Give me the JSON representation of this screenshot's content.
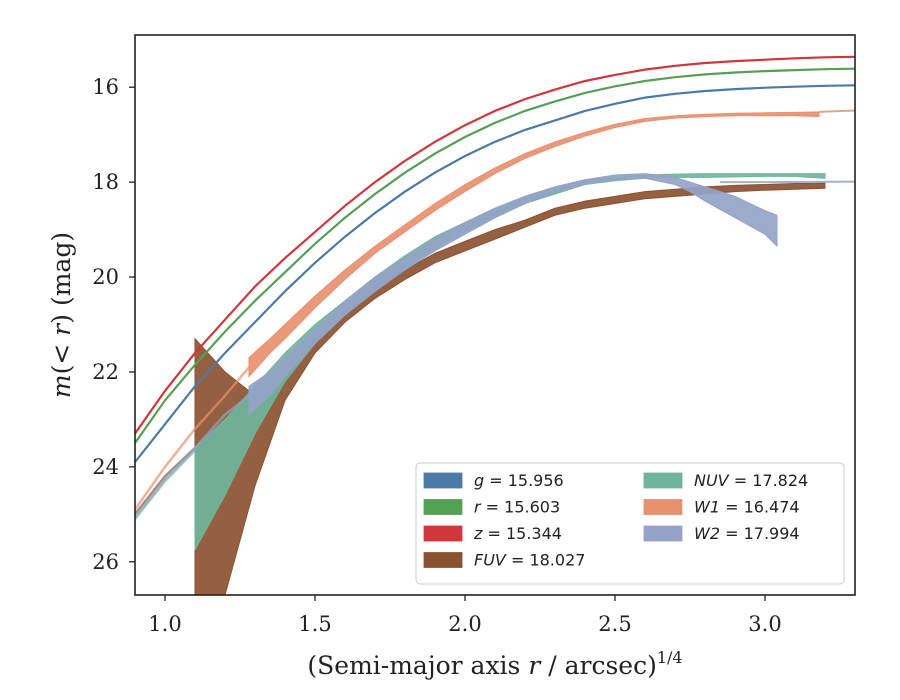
{
  "chart_data": {
    "type": "line",
    "xlabel_main": "(Semi-major axis ",
    "xlabel_var": "r",
    "xlabel_unit": " / arcsec)",
    "xlabel_exp": "1/4",
    "ylabel_m": "m",
    "ylabel_paren_open": "(< ",
    "ylabel_r": "r",
    "ylabel_paren_close": ") (mag)",
    "xlim": [
      0.9,
      3.3
    ],
    "ylim": [
      26.7,
      14.9
    ],
    "y_inverted": true,
    "xticks": [
      1.0,
      1.5,
      2.0,
      2.5,
      3.0
    ],
    "xtick_labels": [
      "1.0",
      "1.5",
      "2.0",
      "2.5",
      "3.0"
    ],
    "yticks": [
      16,
      18,
      20,
      22,
      24,
      26
    ],
    "ytick_labels": [
      "16",
      "18",
      "20",
      "22",
      "24",
      "26"
    ],
    "legend_placement": "lower-right",
    "series": [
      {
        "name": "g",
        "label_var": "g",
        "label_value": "= 15.956",
        "color": "#4c7aa8",
        "kind": "line",
        "x": [
          0.9,
          1.0,
          1.1,
          1.2,
          1.3,
          1.4,
          1.5,
          1.6,
          1.7,
          1.8,
          1.9,
          2.0,
          2.1,
          2.2,
          2.3,
          2.4,
          2.5,
          2.6,
          2.7,
          2.8,
          2.9,
          3.0,
          3.1,
          3.2,
          3.3
        ],
        "y": [
          23.9,
          23.1,
          22.3,
          21.6,
          20.95,
          20.3,
          19.7,
          19.15,
          18.65,
          18.2,
          17.8,
          17.45,
          17.15,
          16.9,
          16.7,
          16.5,
          16.35,
          16.22,
          16.14,
          16.08,
          16.04,
          16.01,
          15.99,
          15.97,
          15.96
        ]
      },
      {
        "name": "r",
        "label_var": "r",
        "label_value": "= 15.603",
        "color": "#55a054",
        "kind": "line",
        "x": [
          0.9,
          1.0,
          1.1,
          1.2,
          1.3,
          1.4,
          1.5,
          1.6,
          1.7,
          1.8,
          1.9,
          2.0,
          2.1,
          2.2,
          2.3,
          2.4,
          2.5,
          2.6,
          2.7,
          2.8,
          2.9,
          3.0,
          3.1,
          3.2,
          3.3
        ],
        "y": [
          23.5,
          22.6,
          21.85,
          21.15,
          20.5,
          19.9,
          19.3,
          18.75,
          18.25,
          17.8,
          17.4,
          17.05,
          16.75,
          16.5,
          16.3,
          16.12,
          15.98,
          15.87,
          15.79,
          15.73,
          15.69,
          15.66,
          15.64,
          15.62,
          15.61
        ]
      },
      {
        "name": "z",
        "label_var": "z",
        "label_value": "= 15.344",
        "color": "#d0363c",
        "kind": "line",
        "x": [
          0.9,
          1.0,
          1.1,
          1.2,
          1.3,
          1.4,
          1.5,
          1.6,
          1.7,
          1.8,
          1.9,
          2.0,
          2.1,
          2.2,
          2.3,
          2.4,
          2.5,
          2.6,
          2.7,
          2.8,
          2.9,
          3.0,
          3.1,
          3.2,
          3.3
        ],
        "y": [
          23.3,
          22.4,
          21.6,
          20.9,
          20.2,
          19.6,
          19.05,
          18.5,
          18.0,
          17.55,
          17.15,
          16.8,
          16.5,
          16.25,
          16.05,
          15.87,
          15.74,
          15.63,
          15.55,
          15.49,
          15.45,
          15.42,
          15.39,
          15.37,
          15.36
        ]
      },
      {
        "name": "FUV",
        "label_var": "FUV",
        "label_value": "= 18.027",
        "color": "#8b5231",
        "kind": "band",
        "x": [
          1.1,
          1.2,
          1.3,
          1.4,
          1.5,
          1.6,
          1.7,
          1.8,
          1.9,
          2.0,
          2.1,
          2.2,
          2.3,
          2.4,
          2.5,
          2.6,
          2.7,
          2.8,
          2.9,
          3.0,
          3.1,
          3.2
        ],
        "y_low": [
          21.3,
          22.0,
          22.5,
          21.9,
          21.3,
          20.7,
          20.2,
          19.85,
          19.5,
          19.25,
          19.0,
          18.8,
          18.55,
          18.4,
          18.3,
          18.2,
          18.15,
          18.1,
          18.07,
          18.05,
          18.03,
          18.02
        ],
        "y_high": [
          26.7,
          26.7,
          24.4,
          22.6,
          21.6,
          20.95,
          20.45,
          20.05,
          19.7,
          19.45,
          19.2,
          18.95,
          18.7,
          18.55,
          18.45,
          18.35,
          18.3,
          18.25,
          18.2,
          18.17,
          18.15,
          18.13
        ],
        "thin_x": [
          0.9,
          1.0,
          1.1
        ],
        "thin_y": [
          25.0,
          24.2,
          23.6
        ]
      },
      {
        "name": "NUV",
        "label_var": "NUV",
        "label_value": "= 17.824",
        "color": "#6fb59b",
        "kind": "band",
        "x": [
          1.1,
          1.2,
          1.3,
          1.4,
          1.5,
          1.6,
          1.7,
          1.8,
          1.9,
          2.0,
          2.1,
          2.2,
          2.3,
          2.4,
          2.5,
          2.6,
          2.7,
          2.8,
          2.9,
          3.0,
          3.1,
          3.2
        ],
        "y_low": [
          23.6,
          23.0,
          22.3,
          21.6,
          21.0,
          20.5,
          20.0,
          19.55,
          19.15,
          18.85,
          18.55,
          18.3,
          18.1,
          17.95,
          17.9,
          17.85,
          17.83,
          17.82,
          17.82,
          17.82,
          17.82,
          17.82
        ],
        "y_high": [
          25.75,
          24.6,
          23.3,
          22.2,
          21.4,
          20.8,
          20.3,
          19.8,
          19.4,
          19.05,
          18.75,
          18.45,
          18.25,
          18.05,
          17.97,
          17.92,
          17.9,
          17.9,
          17.89,
          17.88,
          17.88,
          17.92
        ],
        "thin_x": [
          0.9,
          1.0,
          1.1
        ],
        "thin_y": [
          25.1,
          24.3,
          23.65
        ]
      },
      {
        "name": "W1",
        "label_var": "W1",
        "label_value": "= 16.474",
        "color": "#e8906f",
        "kind": "band",
        "x": [
          1.28,
          1.35,
          1.4,
          1.5,
          1.6,
          1.7,
          1.8,
          1.9,
          2.0,
          2.1,
          2.2,
          2.3,
          2.4,
          2.5,
          2.6,
          2.7,
          2.8,
          2.9,
          3.0,
          3.1,
          3.18
        ],
        "y_low": [
          21.7,
          21.3,
          21.0,
          20.4,
          19.85,
          19.35,
          18.9,
          18.45,
          18.05,
          17.7,
          17.4,
          17.15,
          16.95,
          16.78,
          16.66,
          16.6,
          16.57,
          16.55,
          16.54,
          16.53,
          16.52
        ],
        "y_high": [
          22.1,
          21.6,
          21.3,
          20.65,
          20.05,
          19.5,
          19.05,
          18.6,
          18.2,
          17.82,
          17.5,
          17.25,
          17.03,
          16.85,
          16.72,
          16.65,
          16.62,
          16.6,
          16.6,
          16.6,
          16.62
        ],
        "thin_x": [
          0.9,
          1.0,
          1.1,
          1.2,
          1.28
        ],
        "thin_y": [
          24.9,
          24.0,
          23.2,
          22.5,
          21.9
        ],
        "ext_x": [
          3.18,
          3.3
        ],
        "ext_y": [
          16.52,
          16.49
        ]
      },
      {
        "name": "W2",
        "label_var": "W2",
        "label_value": "= 17.994",
        "color": "#94a3c7",
        "kind": "band",
        "x": [
          1.28,
          1.35,
          1.4,
          1.5,
          1.6,
          1.7,
          1.8,
          1.9,
          2.0,
          2.1,
          2.2,
          2.3,
          2.4,
          2.5,
          2.6,
          2.7,
          2.75,
          2.8,
          2.9,
          3.0,
          3.04
        ],
        "y_low": [
          22.3,
          22.0,
          21.7,
          21.1,
          20.5,
          20.0,
          19.6,
          19.2,
          18.85,
          18.55,
          18.3,
          18.1,
          17.95,
          17.85,
          17.82,
          17.9,
          18.0,
          18.1,
          18.3,
          18.6,
          18.7
        ],
        "y_high": [
          22.9,
          22.5,
          22.1,
          21.4,
          20.8,
          20.3,
          19.85,
          19.45,
          19.1,
          18.75,
          18.45,
          18.2,
          18.05,
          17.95,
          17.92,
          18.05,
          18.2,
          18.4,
          18.75,
          19.1,
          19.35
        ],
        "thin_x": [
          0.9,
          1.0,
          1.1,
          1.2,
          1.28
        ],
        "thin_y": [
          25.05,
          24.25,
          23.6,
          22.9,
          22.5
        ],
        "ext_x": [
          2.85,
          3.0,
          3.3
        ],
        "ext_y": [
          18.0,
          18.0,
          17.99
        ]
      }
    ]
  }
}
